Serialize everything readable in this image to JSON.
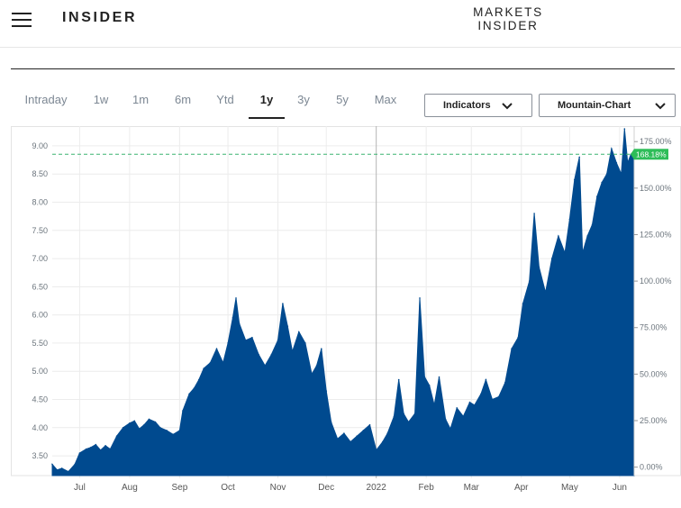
{
  "header": {
    "brand": "INSIDER",
    "markets_line1": "MARKETS",
    "markets_line2": "INSIDER"
  },
  "tabs": [
    {
      "label": "Intraday",
      "active": false
    },
    {
      "label": "1w",
      "active": false
    },
    {
      "label": "1m",
      "active": false
    },
    {
      "label": "6m",
      "active": false
    },
    {
      "label": "Ytd",
      "active": false
    },
    {
      "label": "1y",
      "active": true
    },
    {
      "label": "3y",
      "active": false
    },
    {
      "label": "5y",
      "active": false
    },
    {
      "label": "Max",
      "active": false
    }
  ],
  "controls": {
    "indicators_label": "Indicators",
    "chart_type_label": "Mountain-Chart"
  },
  "colors": {
    "area": "#004a8f",
    "badge": "#2ebd59",
    "dashed_line": "#3cb371"
  },
  "chart_data": {
    "type": "area",
    "x_start": "2021-06-14",
    "x_end": "2022-06-10",
    "x_ticks": [
      {
        "date": "2021-07-01",
        "label": "Jul"
      },
      {
        "date": "2021-08-01",
        "label": "Aug"
      },
      {
        "date": "2021-09-01",
        "label": "Sep"
      },
      {
        "date": "2021-10-01",
        "label": "Oct"
      },
      {
        "date": "2021-11-01",
        "label": "Nov"
      },
      {
        "date": "2021-12-01",
        "label": "Dec"
      },
      {
        "date": "2022-01-01",
        "label": "2022"
      },
      {
        "date": "2022-02-01",
        "label": "Feb"
      },
      {
        "date": "2022-03-01",
        "label": "Mar"
      },
      {
        "date": "2022-04-01",
        "label": "Apr"
      },
      {
        "date": "2022-05-01",
        "label": "May"
      },
      {
        "date": "2022-06-01",
        "label": "Jun"
      }
    ],
    "ylim_left": [
      3.15,
      9.35
    ],
    "y_ticks_left": [
      "9.00",
      "8.50",
      "8.00",
      "7.50",
      "7.00",
      "6.50",
      "6.00",
      "5.50",
      "5.00",
      "4.50",
      "4.00",
      "3.50"
    ],
    "y_ticks_right": [
      "175.00%",
      "150.00%",
      "125.00%",
      "100.00%",
      "75.00%",
      "50.00%",
      "25.00%",
      "0.00%"
    ],
    "right_axis_base": 3.3,
    "current_change_label": "168.18%",
    "current_value": 8.85,
    "grid": true,
    "points": [
      [
        "2021-06-14",
        3.35
      ],
      [
        "2021-06-17",
        3.25
      ],
      [
        "2021-06-20",
        3.28
      ],
      [
        "2021-06-24",
        3.22
      ],
      [
        "2021-06-28",
        3.35
      ],
      [
        "2021-07-01",
        3.55
      ],
      [
        "2021-07-05",
        3.62
      ],
      [
        "2021-07-08",
        3.65
      ],
      [
        "2021-07-11",
        3.7
      ],
      [
        "2021-07-14",
        3.6
      ],
      [
        "2021-07-17",
        3.68
      ],
      [
        "2021-07-20",
        3.62
      ],
      [
        "2021-07-24",
        3.85
      ],
      [
        "2021-07-28",
        4.0
      ],
      [
        "2021-08-01",
        4.08
      ],
      [
        "2021-08-04",
        4.12
      ],
      [
        "2021-08-07",
        3.98
      ],
      [
        "2021-08-10",
        4.05
      ],
      [
        "2021-08-13",
        4.15
      ],
      [
        "2021-08-17",
        4.1
      ],
      [
        "2021-08-20",
        4.0
      ],
      [
        "2021-08-24",
        3.95
      ],
      [
        "2021-08-28",
        3.88
      ],
      [
        "2021-09-01",
        3.95
      ],
      [
        "2021-09-03",
        4.3
      ],
      [
        "2021-09-07",
        4.6
      ],
      [
        "2021-09-10",
        4.7
      ],
      [
        "2021-09-13",
        4.85
      ],
      [
        "2021-09-16",
        5.05
      ],
      [
        "2021-09-20",
        5.15
      ],
      [
        "2021-09-24",
        5.4
      ],
      [
        "2021-09-28",
        5.15
      ],
      [
        "2021-10-01",
        5.5
      ],
      [
        "2021-10-04",
        5.95
      ],
      [
        "2021-10-06",
        6.3
      ],
      [
        "2021-10-08",
        5.85
      ],
      [
        "2021-10-12",
        5.55
      ],
      [
        "2021-10-16",
        5.6
      ],
      [
        "2021-10-20",
        5.3
      ],
      [
        "2021-10-24",
        5.1
      ],
      [
        "2021-10-28",
        5.3
      ],
      [
        "2021-11-01",
        5.55
      ],
      [
        "2021-11-04",
        6.2
      ],
      [
        "2021-11-07",
        5.8
      ],
      [
        "2021-11-10",
        5.35
      ],
      [
        "2021-11-14",
        5.7
      ],
      [
        "2021-11-18",
        5.5
      ],
      [
        "2021-11-22",
        4.95
      ],
      [
        "2021-11-25",
        5.1
      ],
      [
        "2021-11-28",
        5.4
      ],
      [
        "2021-12-01",
        4.65
      ],
      [
        "2021-12-04",
        4.1
      ],
      [
        "2021-12-08",
        3.8
      ],
      [
        "2021-12-12",
        3.9
      ],
      [
        "2021-12-16",
        3.75
      ],
      [
        "2021-12-20",
        3.85
      ],
      [
        "2021-12-24",
        3.95
      ],
      [
        "2021-12-28",
        4.05
      ],
      [
        "2022-01-01",
        3.6
      ],
      [
        "2022-01-05",
        3.75
      ],
      [
        "2022-01-08",
        3.9
      ],
      [
        "2022-01-12",
        4.2
      ],
      [
        "2022-01-15",
        4.85
      ],
      [
        "2022-01-18",
        4.25
      ],
      [
        "2022-01-21",
        4.1
      ],
      [
        "2022-01-25",
        4.25
      ],
      [
        "2022-01-28",
        6.3
      ],
      [
        "2022-01-31",
        4.9
      ],
      [
        "2022-02-03",
        4.75
      ],
      [
        "2022-02-06",
        4.4
      ],
      [
        "2022-02-09",
        4.9
      ],
      [
        "2022-02-13",
        4.15
      ],
      [
        "2022-02-16",
        3.98
      ],
      [
        "2022-02-20",
        4.35
      ],
      [
        "2022-02-24",
        4.2
      ],
      [
        "2022-02-28",
        4.45
      ],
      [
        "2022-03-03",
        4.4
      ],
      [
        "2022-03-07",
        4.6
      ],
      [
        "2022-03-10",
        4.85
      ],
      [
        "2022-03-14",
        4.5
      ],
      [
        "2022-03-18",
        4.55
      ],
      [
        "2022-03-22",
        4.8
      ],
      [
        "2022-03-26",
        5.4
      ],
      [
        "2022-03-30",
        5.6
      ],
      [
        "2022-04-02",
        6.2
      ],
      [
        "2022-04-06",
        6.6
      ],
      [
        "2022-04-09",
        7.8
      ],
      [
        "2022-04-12",
        6.85
      ],
      [
        "2022-04-16",
        6.4
      ],
      [
        "2022-04-20",
        7.0
      ],
      [
        "2022-04-24",
        7.4
      ],
      [
        "2022-04-28",
        7.1
      ],
      [
        "2022-05-01",
        7.7
      ],
      [
        "2022-05-04",
        8.4
      ],
      [
        "2022-05-07",
        8.8
      ],
      [
        "2022-05-09",
        7.1
      ],
      [
        "2022-05-12",
        7.4
      ],
      [
        "2022-05-15",
        7.6
      ],
      [
        "2022-05-18",
        8.1
      ],
      [
        "2022-05-21",
        8.35
      ],
      [
        "2022-05-24",
        8.5
      ],
      [
        "2022-05-27",
        8.95
      ],
      [
        "2022-05-30",
        8.7
      ],
      [
        "2022-06-02",
        8.5
      ],
      [
        "2022-06-04",
        9.3
      ],
      [
        "2022-06-06",
        8.7
      ],
      [
        "2022-06-08",
        8.85
      ],
      [
        "2022-06-10",
        8.85
      ]
    ]
  }
}
